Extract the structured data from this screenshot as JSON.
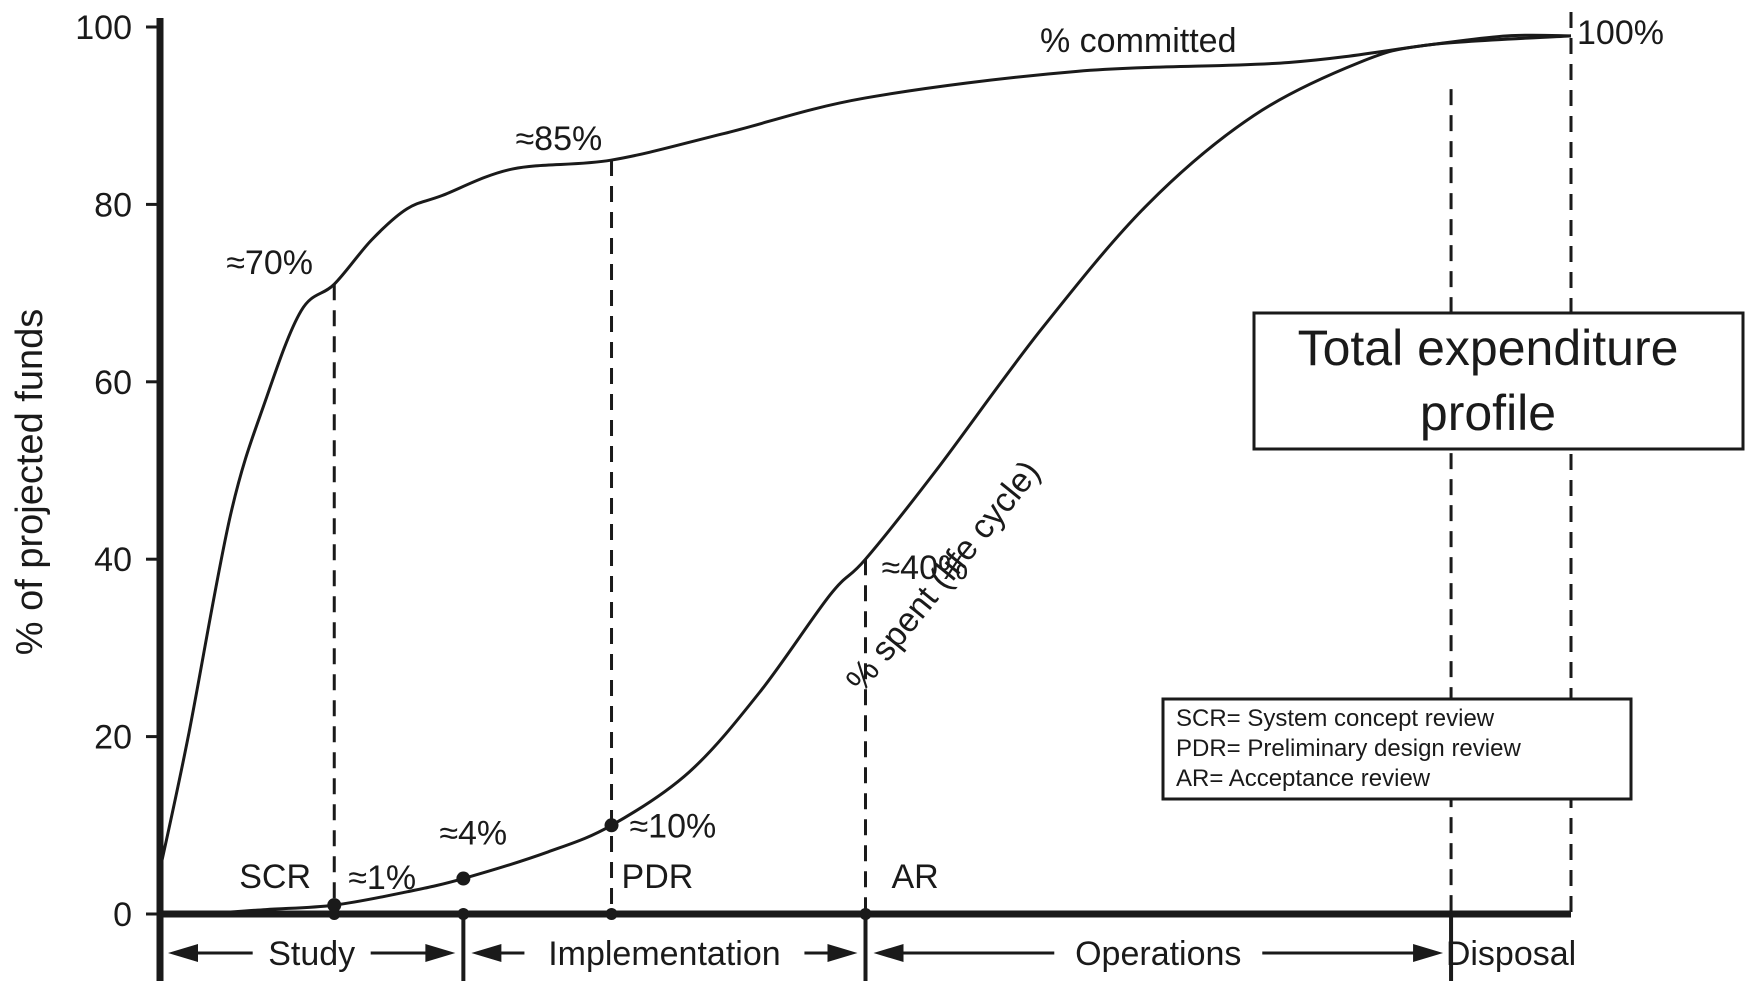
{
  "chart_data": {
    "type": "line",
    "ylabel": "% of projected funds",
    "ylim": [
      0,
      100
    ],
    "y_ticks": [
      "0",
      "20",
      "40",
      "60",
      "80",
      "100"
    ],
    "title_box": {
      "line1": "Total expenditure",
      "line2": "profile"
    },
    "series": [
      {
        "name": "% committed",
        "points": [
          [
            0,
            5
          ],
          [
            0.4,
            20
          ],
          [
            1.0,
            45
          ],
          [
            1.5,
            58
          ],
          [
            2.0,
            68
          ],
          [
            2.47,
            71
          ],
          [
            3.0,
            76
          ],
          [
            3.5,
            79.5
          ],
          [
            4.0,
            81
          ],
          [
            5.0,
            84
          ],
          [
            6.4,
            85
          ],
          [
            8.0,
            88
          ],
          [
            10.0,
            92
          ],
          [
            13.0,
            95
          ],
          [
            16.0,
            96
          ],
          [
            18.0,
            98
          ],
          [
            19.1,
            99
          ],
          [
            20.0,
            99
          ]
        ]
      },
      {
        "name": "% spent (life cycle)",
        "points": [
          [
            0,
            0
          ],
          [
            0.5,
            0
          ],
          [
            1.5,
            0.5
          ],
          [
            2.47,
            1
          ],
          [
            3.5,
            2.5
          ],
          [
            4.3,
            4
          ],
          [
            5.5,
            7
          ],
          [
            6.4,
            10
          ],
          [
            7.5,
            16
          ],
          [
            8.5,
            25
          ],
          [
            9.5,
            36
          ],
          [
            10.0,
            40
          ],
          [
            11.0,
            50
          ],
          [
            12.5,
            66
          ],
          [
            14.0,
            80
          ],
          [
            15.5,
            90
          ],
          [
            17.0,
            96
          ],
          [
            18.0,
            98
          ],
          [
            20.0,
            99
          ]
        ]
      }
    ],
    "annotations": [
      {
        "text": "≈70%",
        "x": 2.47,
        "y": 71
      },
      {
        "text": "≈85%",
        "x": 6.4,
        "y": 85
      },
      {
        "text": "100%",
        "x": 20.0,
        "y": 99
      },
      {
        "text": "≈1%",
        "x": 2.47,
        "y": 1
      },
      {
        "text": "≈4%",
        "x": 4.3,
        "y": 4
      },
      {
        "text": "≈10%",
        "x": 6.4,
        "y": 10
      },
      {
        "text": "≈40%",
        "x": 10.0,
        "y": 40
      }
    ],
    "reviews": [
      {
        "label": "SCR",
        "x": 2.47
      },
      {
        "label": "PDR",
        "x": 6.4
      },
      {
        "label": "AR",
        "x": 10.0
      }
    ],
    "phases": [
      {
        "label": "Study",
        "start": 0,
        "end": 4.3
      },
      {
        "label": "Implementation",
        "start": 4.3,
        "end": 10.0
      },
      {
        "label": "Operations",
        "start": 10.0,
        "end": 18.3
      },
      {
        "label": "Disposal",
        "start": 18.3,
        "end": 20.0
      }
    ],
    "legend_lines": [
      "SCR= System concept review",
      "PDR= Preliminary design review",
      "AR= Acceptance review"
    ]
  }
}
